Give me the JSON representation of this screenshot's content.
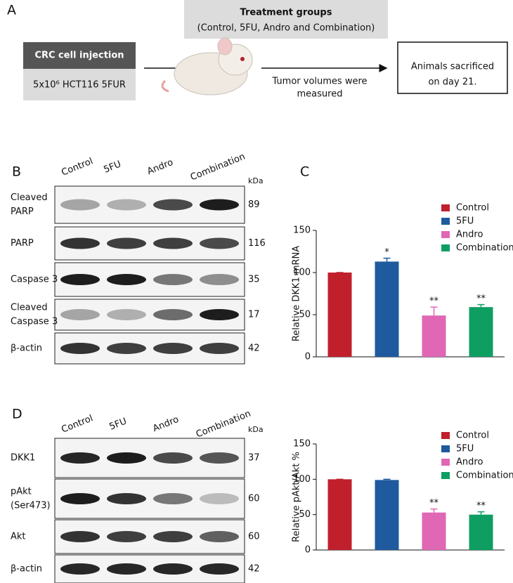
{
  "diagram": {
    "label": "A",
    "groups_title": "Treatment groups",
    "groups_subtitle": "(Control, 5FU, Andro and Combination)",
    "injection_title": "CRC cell injection",
    "injection_detail": "5x10⁶ HCT116 5FUR",
    "measure_lines": [
      "Tumor volumes were",
      "measured"
    ],
    "sacrifice_lines": [
      "Animals sacrificed",
      "on day 21."
    ]
  },
  "blots": [
    {
      "label": "B",
      "lanes": [
        "Control",
        "5FU",
        "Andro",
        "Combination"
      ],
      "unit": "kDa",
      "rows": [
        {
          "name": [
            "Cleaved",
            "PARP"
          ],
          "kda": 89
        },
        {
          "name": [
            "PARP"
          ],
          "kda": 116
        },
        {
          "name": [
            "Caspase 3"
          ],
          "kda": 35
        },
        {
          "name": [
            "Cleaved",
            "Caspase 3"
          ],
          "kda": 17
        },
        {
          "name": [
            "β-actin"
          ],
          "kda": 42
        }
      ]
    },
    {
      "label": "D",
      "lanes": [
        "Control",
        "5FU",
        "Andro",
        "Combination"
      ],
      "unit": "kDa",
      "rows": [
        {
          "name": [
            "DKK1"
          ],
          "kda": 37
        },
        {
          "name": [
            "pAkt",
            "(Ser473)"
          ],
          "kda": 60
        },
        {
          "name": [
            "Akt"
          ],
          "kda": 60
        },
        {
          "name": [
            "β-actin"
          ],
          "kda": 42
        }
      ]
    }
  ],
  "chart_data": [
    {
      "type": "bar",
      "label": "C",
      "y_label": "Relative DKK1 mRNA",
      "categories": [
        "Control",
        "5FU",
        "Andro",
        "Combination"
      ],
      "colors": [
        "#c0202c",
        "#1f5a9e",
        "#e067b4",
        "#0f9e62"
      ],
      "values": [
        100,
        113,
        49,
        59
      ],
      "errors": [
        0,
        4,
        10,
        3
      ],
      "annotations": [
        {
          "index": 1,
          "text": "*"
        },
        {
          "index": 2,
          "text": "**"
        },
        {
          "index": 3,
          "text": "**"
        }
      ],
      "ylim": [
        0,
        150
      ],
      "yticks": [
        0,
        50,
        100,
        150
      ]
    },
    {
      "type": "bar",
      "y_label": "Relative pAkt/Akt %",
      "categories": [
        "Control",
        "5FU",
        "Andro",
        "Combination"
      ],
      "colors": [
        "#c0202c",
        "#1f5a9e",
        "#e067b4",
        "#0f9e62"
      ],
      "values": [
        100,
        99,
        53,
        50
      ],
      "errors": [
        0,
        1,
        5,
        4
      ],
      "annotations": [
        {
          "index": 2,
          "text": "**"
        },
        {
          "index": 3,
          "text": "**"
        }
      ],
      "ylim": [
        0,
        150
      ],
      "yticks": [
        0,
        50,
        100,
        150
      ]
    }
  ]
}
